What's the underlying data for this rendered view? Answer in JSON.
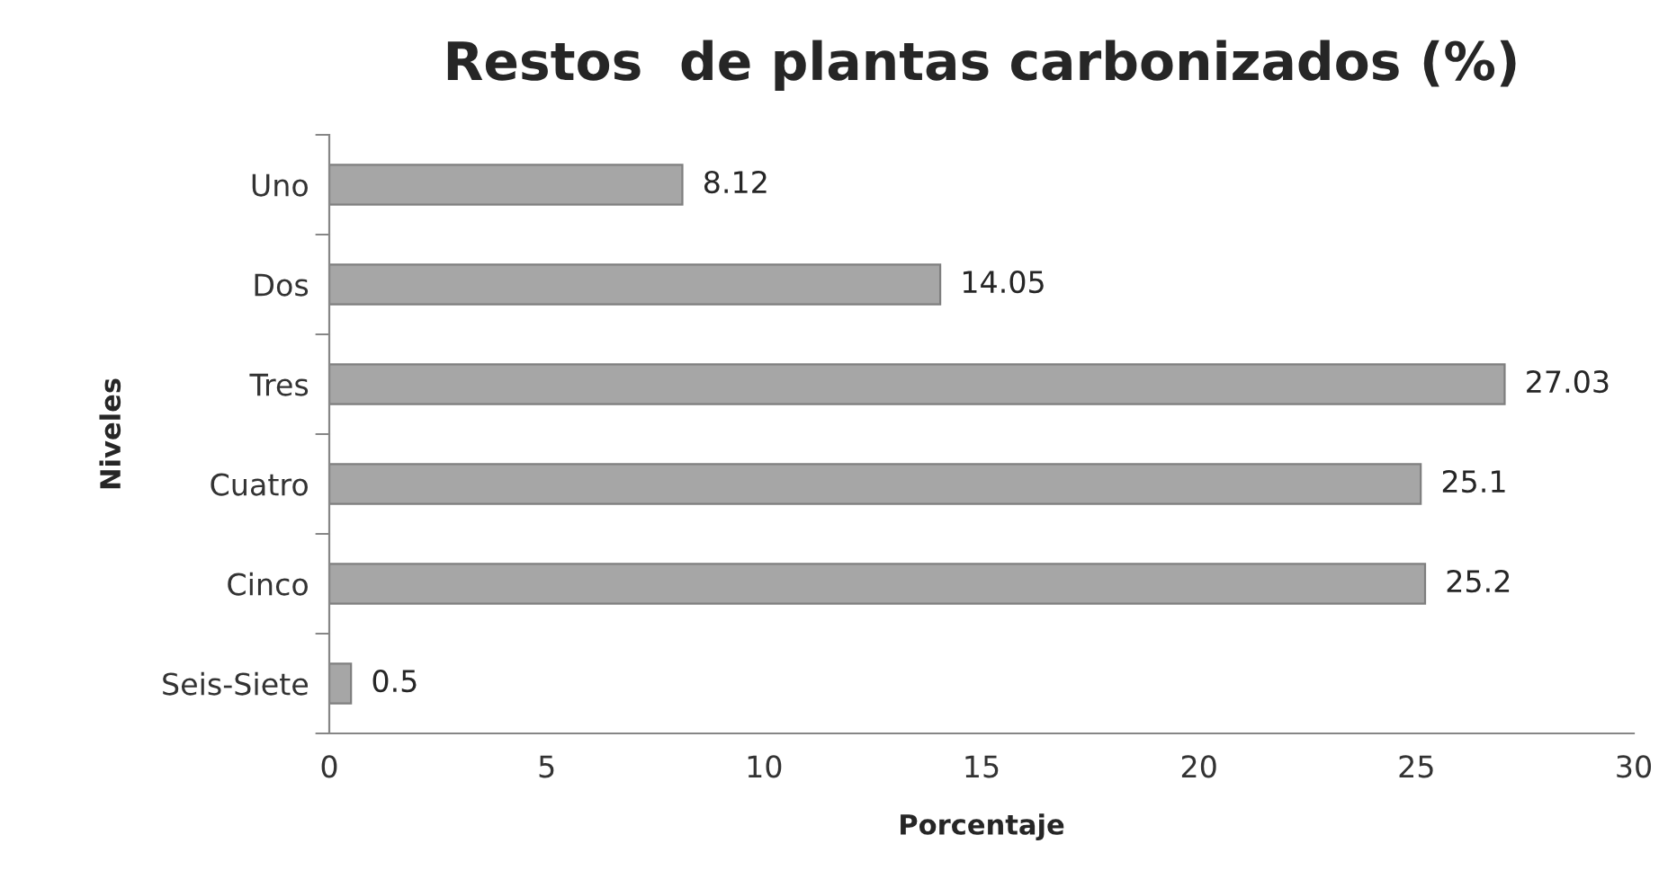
{
  "chart_data": {
    "type": "bar",
    "orientation": "horizontal",
    "title": "Restos  de plantas carbonizados (%)",
    "xlabel": "Porcentaje",
    "ylabel": "Niveles",
    "categories": [
      "Uno",
      "Dos",
      "Tres",
      "Cuatro",
      "Cinco",
      "Seis-Siete"
    ],
    "values": [
      8.12,
      14.05,
      27.03,
      25.1,
      25.2,
      0.5
    ],
    "color": "#a6a6a6",
    "data_labels": true,
    "xlim": [
      0,
      30
    ],
    "xticks": [
      0,
      5,
      10,
      15,
      20,
      25,
      30
    ],
    "grid": false,
    "legend": false
  }
}
